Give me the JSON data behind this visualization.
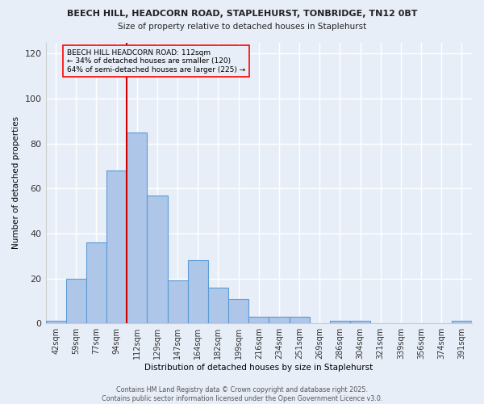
{
  "title1": "BEECH HILL, HEADCORN ROAD, STAPLEHURST, TONBRIDGE, TN12 0BT",
  "title2": "Size of property relative to detached houses in Staplehurst",
  "xlabel": "Distribution of detached houses by size in Staplehurst",
  "ylabel": "Number of detached properties",
  "bin_labels": [
    "42sqm",
    "59sqm",
    "77sqm",
    "94sqm",
    "112sqm",
    "129sqm",
    "147sqm",
    "164sqm",
    "182sqm",
    "199sqm",
    "216sqm",
    "234sqm",
    "251sqm",
    "269sqm",
    "286sqm",
    "304sqm",
    "321sqm",
    "339sqm",
    "356sqm",
    "374sqm",
    "391sqm"
  ],
  "bar_values": [
    1,
    20,
    36,
    68,
    85,
    57,
    19,
    28,
    16,
    11,
    3,
    3,
    3,
    0,
    1,
    1,
    0,
    0,
    0,
    0,
    1
  ],
  "bar_color": "#aec6e8",
  "bar_edge_color": "#5b9bd5",
  "vline_color": "#cc0000",
  "annotation_text": "BEECH HILL HEADCORN ROAD: 112sqm\n← 34% of detached houses are smaller (120)\n64% of semi-detached houses are larger (225) →",
  "ylim": [
    0,
    125
  ],
  "yticks": [
    0,
    20,
    40,
    60,
    80,
    100,
    120
  ],
  "background_color": "#e8eef8",
  "grid_color": "#ffffff",
  "footer": "Contains HM Land Registry data © Crown copyright and database right 2025.\nContains public sector information licensed under the Open Government Licence v3.0."
}
